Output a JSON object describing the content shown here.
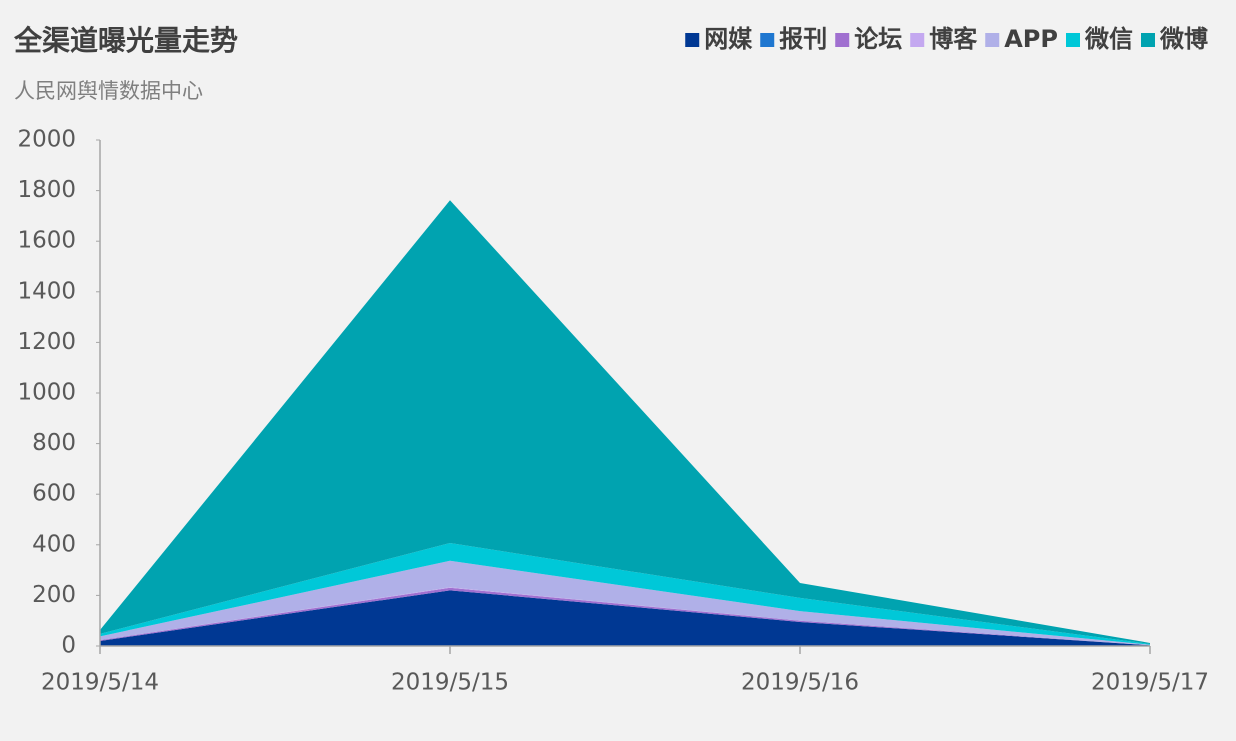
{
  "chart_data": {
    "type": "stacked-area",
    "title": "全渠道曝光量走势",
    "subtitle": "人民网舆情数据中心",
    "categories": [
      "2019/5/14",
      "2019/5/15",
      "2019/5/16",
      "2019/5/17"
    ],
    "series": [
      {
        "name": "网媒",
        "color": "#003893",
        "values": [
          20,
          220,
          95,
          3
        ]
      },
      {
        "name": "报刊",
        "color": "#1f77d0",
        "values": [
          0,
          0,
          0,
          0
        ]
      },
      {
        "name": "论坛",
        "color": "#a070d0",
        "values": [
          3,
          10,
          5,
          0
        ]
      },
      {
        "name": "博客",
        "color": "#c4a8f0",
        "values": [
          0,
          2,
          0,
          0
        ]
      },
      {
        "name": "APP",
        "color": "#b0b0e8",
        "values": [
          15,
          105,
          38,
          2
        ]
      },
      {
        "name": "微信",
        "color": "#00c8d8",
        "values": [
          10,
          70,
          52,
          3
        ]
      },
      {
        "name": "微博",
        "color": "#00a3b0",
        "values": [
          15,
          1355,
          59,
          4
        ]
      }
    ],
    "ylim": [
      0,
      2000
    ],
    "yticks": [
      0,
      200,
      400,
      600,
      800,
      1000,
      1200,
      1400,
      1600,
      1800,
      2000
    ],
    "grid": false,
    "legend": "top-right"
  }
}
